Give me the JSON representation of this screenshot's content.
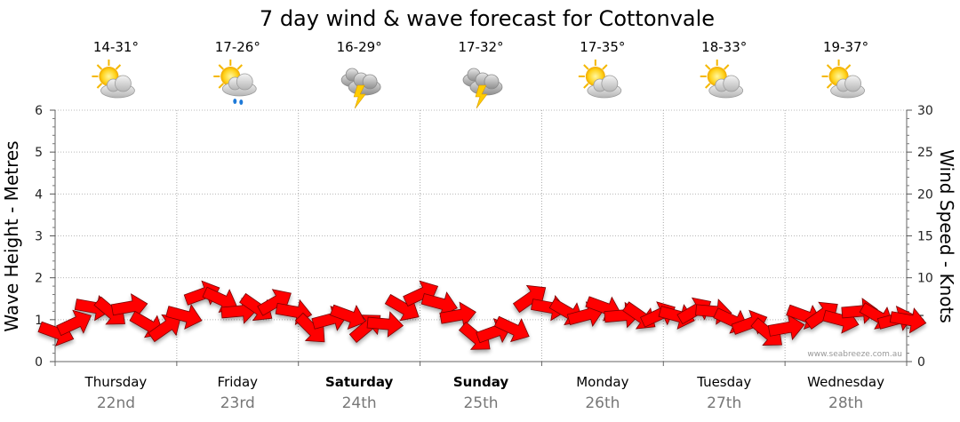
{
  "chart_data": {
    "type": "line",
    "title": "7 day wind & wave forecast for Cottonvale",
    "ylabel_left": "Wave Height - Metres",
    "ylabel_right": "Wind Speed - Knots",
    "ylim_left": [
      0,
      6
    ],
    "ylim_right": [
      0,
      30
    ],
    "yticks_left": [
      "0",
      "1",
      "2",
      "3",
      "4",
      "5",
      "6"
    ],
    "yticks_right": [
      "0",
      "5",
      "10",
      "15",
      "20",
      "25",
      "30"
    ],
    "credit": "www.seabreeze.com.au",
    "days": [
      {
        "day": "Thursday",
        "date": "22nd",
        "temp": "14-31°",
        "icon": "sun-cloud-icon",
        "bold": false
      },
      {
        "day": "Friday",
        "date": "23rd",
        "temp": "17-26°",
        "icon": "sun-cloud-rain-icon",
        "bold": false
      },
      {
        "day": "Saturday",
        "date": "24th",
        "temp": "16-29°",
        "icon": "storm-icon",
        "bold": true
      },
      {
        "day": "Sunday",
        "date": "25th",
        "temp": "17-32°",
        "icon": "storm-icon",
        "bold": true
      },
      {
        "day": "Monday",
        "date": "26th",
        "temp": "17-35°",
        "icon": "sun-cloud-icon",
        "bold": false
      },
      {
        "day": "Tuesday",
        "date": "27th",
        "temp": "18-33°",
        "icon": "sun-cloud-icon",
        "bold": false
      },
      {
        "day": "Wednesday",
        "date": "28th",
        "temp": "19-37°",
        "icon": "sun-cloud-icon",
        "bold": false
      }
    ],
    "series": [
      {
        "name": "Wind Speed (knots)",
        "color": "#ff0000",
        "x_days": [
          0,
          0.15,
          0.3,
          0.45,
          0.6,
          0.75,
          0.9,
          1.05,
          1.2,
          1.35,
          1.5,
          1.65,
          1.8,
          1.95,
          2.1,
          2.25,
          2.4,
          2.55,
          2.7,
          2.85,
          3.0,
          3.15,
          3.3,
          3.45,
          3.6,
          3.75,
          3.9,
          4.05,
          4.2,
          4.35,
          4.5,
          4.65,
          4.8,
          4.95,
          5.1,
          5.25,
          5.4,
          5.55,
          5.7,
          5.85,
          6.0,
          6.15,
          6.3,
          6.45,
          6.6,
          6.75,
          6.9,
          7.0
        ],
        "values": [
          3.5,
          4.5,
          6.5,
          6,
          6.5,
          4.5,
          4,
          5.5,
          8,
          7.5,
          6,
          6.5,
          7,
          6,
          4,
          5,
          5.5,
          4,
          4.5,
          6.5,
          8,
          7,
          5.5,
          3,
          3.5,
          4,
          7.5,
          6.5,
          6,
          5.5,
          6.5,
          5.5,
          5.5,
          5.5,
          5.5,
          6,
          6,
          5,
          4.5,
          3.5,
          4,
          5.5,
          5.5,
          5,
          6,
          5.5,
          5,
          5
        ]
      }
    ]
  }
}
